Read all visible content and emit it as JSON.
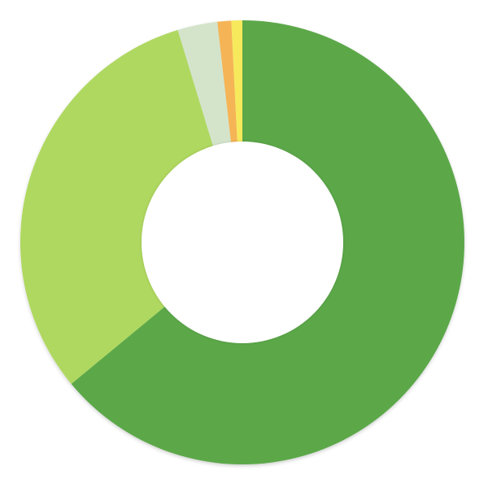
{
  "chart_data": {
    "type": "pie",
    "style": "donut",
    "legend": "none",
    "title": "",
    "slices": [
      {
        "value": 64.0,
        "color": "#5ba84a"
      },
      {
        "value": 31.3,
        "color": "#afd860"
      },
      {
        "value": 2.9,
        "color": "#d4e4cb"
      },
      {
        "value": 1.0,
        "color": "#f5b456"
      },
      {
        "value": 0.8,
        "color": "#f6e95c"
      }
    ]
  }
}
